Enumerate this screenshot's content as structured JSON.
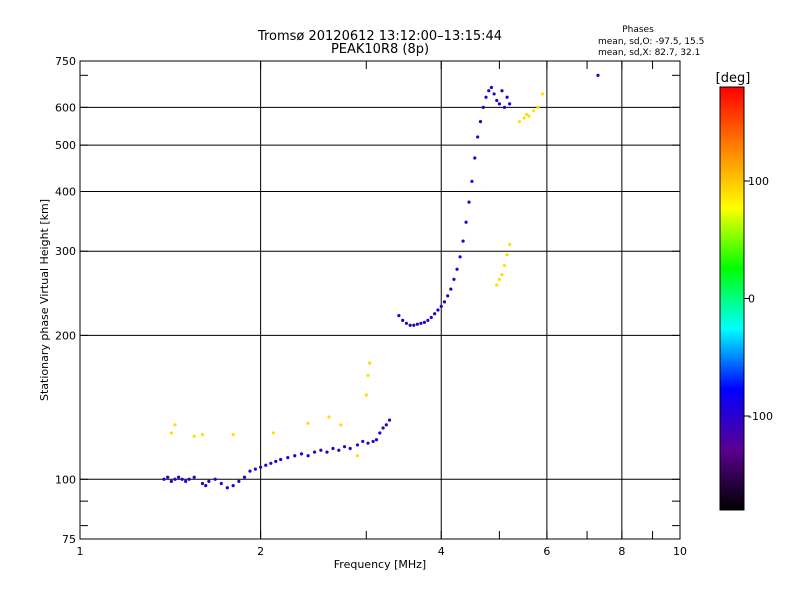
{
  "chart_data": {
    "type": "scatter",
    "title": "Tromsø 20120612 13:12:00–13:15:44",
    "subtitle": "PEAK10R8 (8p)",
    "phases": {
      "heading": "Phases",
      "o_line": "mean, sd,O: -97.5, 15.5",
      "x_line": "mean, sd,X:  82.7, 32.1"
    },
    "xlabel": "Frequency [MHz]",
    "ylabel": "Stationary phase Virtual Height [km]",
    "x_scale": "log",
    "y_scale": "log",
    "xlim": [
      1,
      10
    ],
    "ylim": [
      75,
      750
    ],
    "x_ticks": [
      1,
      2,
      4,
      6,
      8,
      10
    ],
    "x_tick_labels": [
      "1",
      "2",
      "4",
      "6",
      "8",
      "10"
    ],
    "y_ticks": [
      75,
      100,
      200,
      300,
      400,
      500,
      600,
      750
    ],
    "y_tick_labels": [
      "75",
      "100",
      "200",
      "300",
      "400",
      "500",
      "600",
      "750"
    ],
    "grid": true,
    "colorbar": {
      "label": "[deg]",
      "range": [
        -180,
        180
      ],
      "ticks": [
        -100,
        0,
        100
      ],
      "tick_labels": [
        "-100",
        "0",
        "100"
      ],
      "colors": [
        "#000000",
        "#5a0090",
        "#0000ff",
        "#00ffff",
        "#00ff00",
        "#ffff00",
        "#ff8000",
        "#ff0000"
      ]
    },
    "series": [
      {
        "values_hint": "O-mode trace",
        "phase": -100,
        "points": [
          [
            1.38,
            100
          ],
          [
            1.4,
            101
          ],
          [
            1.42,
            99
          ],
          [
            1.44,
            100
          ],
          [
            1.46,
            101
          ],
          [
            1.48,
            100
          ],
          [
            1.5,
            99
          ],
          [
            1.52,
            100
          ],
          [
            1.55,
            101
          ],
          [
            1.6,
            98
          ],
          [
            1.62,
            97
          ],
          [
            1.64,
            99
          ],
          [
            1.68,
            100
          ],
          [
            1.72,
            98
          ],
          [
            1.76,
            96
          ],
          [
            1.8,
            97
          ],
          [
            1.84,
            99
          ],
          [
            1.88,
            101
          ],
          [
            1.92,
            104
          ],
          [
            1.96,
            105
          ],
          [
            2.0,
            106
          ],
          [
            2.04,
            107
          ],
          [
            2.08,
            108
          ],
          [
            2.12,
            109
          ],
          [
            2.16,
            110
          ],
          [
            2.22,
            111
          ],
          [
            2.28,
            112
          ],
          [
            2.34,
            113
          ],
          [
            2.4,
            112
          ],
          [
            2.46,
            114
          ],
          [
            2.52,
            115
          ],
          [
            2.58,
            114
          ],
          [
            2.64,
            116
          ],
          [
            2.7,
            115
          ],
          [
            2.76,
            117
          ],
          [
            2.82,
            116
          ],
          [
            2.9,
            118
          ],
          [
            2.96,
            120
          ],
          [
            3.02,
            119
          ],
          [
            3.08,
            120
          ],
          [
            3.12,
            121
          ],
          [
            3.16,
            125
          ],
          [
            3.2,
            128
          ],
          [
            3.24,
            130
          ],
          [
            3.28,
            133
          ],
          [
            3.4,
            220
          ],
          [
            3.45,
            215
          ],
          [
            3.5,
            212
          ],
          [
            3.55,
            210
          ],
          [
            3.6,
            210
          ],
          [
            3.65,
            211
          ],
          [
            3.7,
            212
          ],
          [
            3.75,
            213
          ],
          [
            3.8,
            215
          ],
          [
            3.85,
            218
          ],
          [
            3.9,
            222
          ],
          [
            3.95,
            226
          ],
          [
            4.0,
            230
          ],
          [
            4.05,
            235
          ],
          [
            4.1,
            242
          ],
          [
            4.15,
            250
          ],
          [
            4.2,
            262
          ],
          [
            4.25,
            275
          ],
          [
            4.3,
            292
          ],
          [
            4.35,
            315
          ],
          [
            4.4,
            345
          ],
          [
            4.45,
            380
          ],
          [
            4.5,
            420
          ],
          [
            4.55,
            470
          ],
          [
            4.6,
            520
          ],
          [
            4.65,
            560
          ],
          [
            4.7,
            600
          ],
          [
            4.75,
            630
          ],
          [
            4.8,
            650
          ],
          [
            4.85,
            660
          ],
          [
            4.9,
            640
          ],
          [
            4.95,
            620
          ],
          [
            5.0,
            610
          ],
          [
            5.05,
            650
          ],
          [
            5.1,
            600
          ],
          [
            5.15,
            630
          ],
          [
            5.2,
            610
          ],
          [
            7.3,
            700
          ]
        ]
      },
      {
        "values_hint": "X-mode trace",
        "phase": 90,
        "points": [
          [
            1.42,
            125
          ],
          [
            1.44,
            130
          ],
          [
            1.55,
            123
          ],
          [
            1.6,
            124
          ],
          [
            1.8,
            124
          ],
          [
            2.1,
            125
          ],
          [
            2.4,
            131
          ],
          [
            2.6,
            135
          ],
          [
            2.72,
            130
          ],
          [
            2.9,
            112
          ],
          [
            3.0,
            150
          ],
          [
            3.02,
            165
          ],
          [
            3.04,
            175
          ],
          [
            4.95,
            255
          ],
          [
            5.0,
            262
          ],
          [
            5.05,
            268
          ],
          [
            5.1,
            280
          ],
          [
            5.15,
            295
          ],
          [
            5.2,
            310
          ],
          [
            5.4,
            560
          ],
          [
            5.5,
            570
          ],
          [
            5.55,
            580
          ],
          [
            5.6,
            575
          ],
          [
            5.7,
            590
          ],
          [
            5.8,
            600
          ],
          [
            5.9,
            640
          ]
        ]
      }
    ]
  }
}
